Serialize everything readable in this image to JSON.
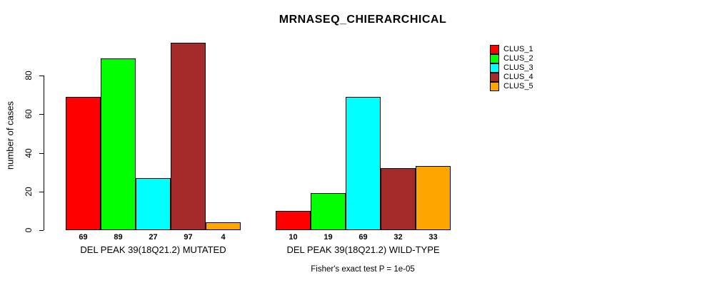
{
  "chart_data": {
    "type": "bar",
    "title": "MRNASEQ_CHIERARCHICAL",
    "ylabel": "number of cases",
    "xlabel": "",
    "ylim": [
      0,
      100
    ],
    "yticks": [
      0,
      20,
      40,
      60,
      80
    ],
    "grid": false,
    "legend_position": "right-outside",
    "series_names": [
      "CLUS_1",
      "CLUS_2",
      "CLUS_3",
      "CLUS_4",
      "CLUS_5"
    ],
    "legend": [
      {
        "label": "CLUS_1",
        "color": "#FF0000"
      },
      {
        "label": "CLUS_2",
        "color": "#00FF00"
      },
      {
        "label": "CLUS_3",
        "color": "#00FFFF"
      },
      {
        "label": "CLUS_4",
        "color": "#A52A2A"
      },
      {
        "label": "CLUS_5",
        "color": "#FFA500"
      }
    ],
    "groups": [
      {
        "label": "DEL PEAK 39(18Q21.2) MUTATED",
        "values": [
          69,
          89,
          27,
          97,
          4
        ],
        "value_labels": [
          "69",
          "89",
          "27",
          "97",
          "4"
        ]
      },
      {
        "label": "DEL PEAK 39(18Q21.2) WILD-TYPE",
        "values": [
          10,
          19,
          69,
          32,
          33
        ],
        "value_labels": [
          "10",
          "19",
          "69",
          "32",
          "33"
        ]
      }
    ],
    "annotation": "Fisher's exact test P = 1e-05"
  },
  "colors": {
    "background": "#FFFFFF",
    "axis": "#000000",
    "bar_border": "#000000",
    "text": "#000000"
  }
}
